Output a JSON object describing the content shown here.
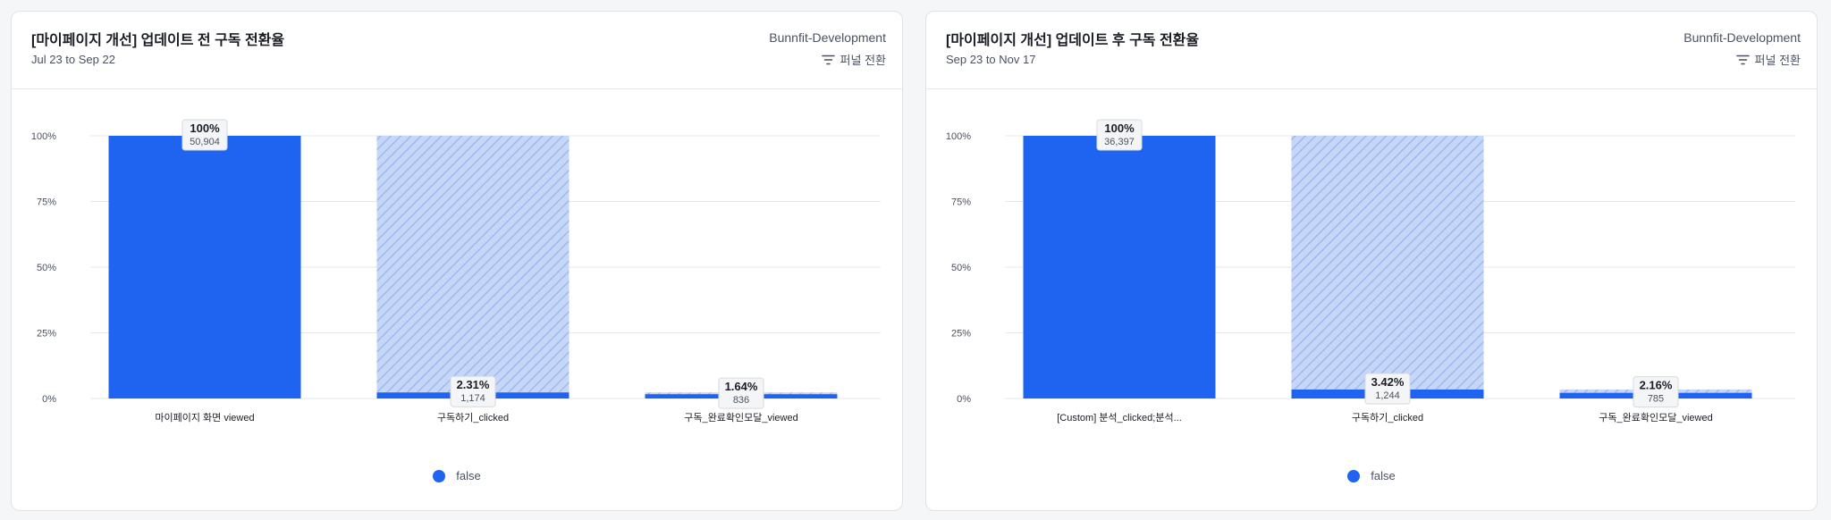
{
  "colors": {
    "accent": "#1f64f0",
    "hatch": "#c6d6f7",
    "hatch_line": "#9fb9ef"
  },
  "icons": {
    "funnel": "funnel-icon"
  },
  "chart_data": [
    {
      "type": "bar",
      "title": "[마이페이지 개선] 업데이트 전 구독 전환율",
      "subtitle": "Jul 23 to Sep 22",
      "project": "Bunnfit-Development",
      "toggle_label": "퍼널 전환",
      "categories": [
        "마이페이지 화면 viewed",
        "구독하기_clicked",
        "구독_완료확인모달_viewed"
      ],
      "yticks": [
        "100%",
        "75%",
        "50%",
        "25%",
        "0%"
      ],
      "ylim": [
        0,
        100
      ],
      "grid": true,
      "series": [
        {
          "name": "false",
          "values": [
            100,
            2.31,
            1.64
          ],
          "labels": [
            "100%",
            "2.31%",
            "1.64%"
          ],
          "counts": [
            "50,904",
            "1,174",
            "836"
          ]
        }
      ],
      "dropoff_from": [
        null,
        100,
        2.31
      ],
      "legend": "bottom-center"
    },
    {
      "type": "bar",
      "title": "[마이페이지 개선] 업데이트 후 구독 전환율",
      "subtitle": "Sep 23 to Nov 17",
      "project": "Bunnfit-Development",
      "toggle_label": "퍼널 전환",
      "categories": [
        "[Custom] 분석_clicked;분석...",
        "구독하기_clicked",
        "구독_완료확인모달_viewed"
      ],
      "yticks": [
        "100%",
        "75%",
        "50%",
        "25%",
        "0%"
      ],
      "ylim": [
        0,
        100
      ],
      "grid": true,
      "series": [
        {
          "name": "false",
          "values": [
            100,
            3.42,
            2.16
          ],
          "labels": [
            "100%",
            "3.42%",
            "2.16%"
          ],
          "counts": [
            "36,397",
            "1,244",
            "785"
          ]
        }
      ],
      "dropoff_from": [
        null,
        100,
        3.42
      ],
      "legend": "bottom-center"
    }
  ]
}
